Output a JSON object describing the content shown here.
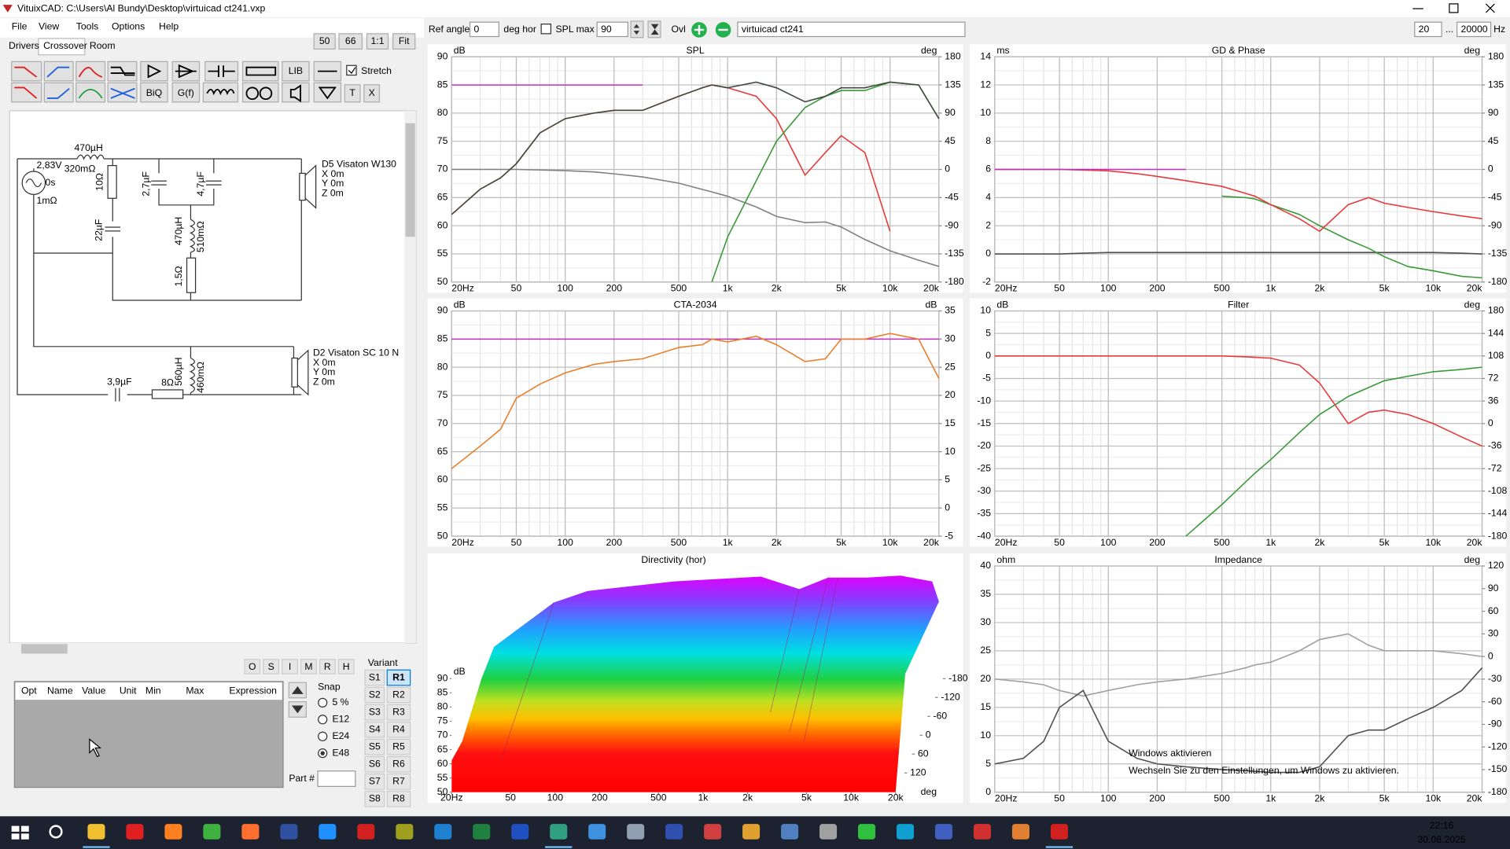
{
  "window": {
    "title": "VituixCAD: C:\\Users\\Al Bundy\\Desktop\\virtuicad ct241.vxp",
    "menu": [
      "File",
      "View",
      "Tools",
      "Options",
      "Help"
    ]
  },
  "tabs": [
    "Drivers",
    "Crossover",
    "Room"
  ],
  "zoom_buttons": [
    "50",
    "66",
    "1:1",
    "Fit"
  ],
  "toolbar": {
    "stretch": "Stretch",
    "lib": "LIB",
    "biq": "BiQ",
    "gf": "G(f)",
    "t": "T",
    "x": "X"
  },
  "schematic": {
    "labels": [
      "470µH",
      "320mΩ",
      "2,83V",
      "0s",
      "1mΩ",
      "10Ω",
      "2,7µF",
      "4,7µF",
      "22µF",
      "470µH",
      "510mΩ",
      "1,5Ω",
      "D5 Visaton W130",
      "X 0m",
      "Y 0m",
      "Z 0m",
      "D2 Visaton SC 10 N",
      "X 0m",
      "Y 0m",
      "Z 0m",
      "3,9µF",
      "8Ω",
      "560µH",
      "460mΩ"
    ]
  },
  "optimizer": {
    "flags": [
      "O",
      "S",
      "I",
      "M",
      "R",
      "H"
    ],
    "columns": [
      "Opt",
      "Name",
      "Value",
      "Unit",
      "Min",
      "Max",
      "Expression"
    ],
    "snap_title": "Snap",
    "snap_options": [
      "5 %",
      "E12",
      "E24",
      "E48"
    ],
    "part_label": "Part #",
    "variant_title": "Variant",
    "s": [
      "S1",
      "S2",
      "S3",
      "S4",
      "S5",
      "S6",
      "S7",
      "S8"
    ],
    "r": [
      "R1",
      "R2",
      "R3",
      "R4",
      "R5",
      "R6",
      "R7",
      "R8"
    ]
  },
  "top_bar": {
    "ref_angle_label": "Ref angle",
    "ref_angle": 0,
    "deg_hor": "deg hor",
    "spl_max_label": "SPL max",
    "spl_max": 90,
    "ovl": "Ovl",
    "project": "virtuicad ct241",
    "f_min": 20,
    "dots": "...",
    "f_max": 20000,
    "hz": "Hz"
  },
  "chart_data": [
    {
      "type": "line",
      "title": "SPL",
      "y_label": "dB",
      "y2_label": "deg",
      "xscale": "log",
      "grid": true,
      "minor_grid": true,
      "xlim": [
        20,
        20000
      ],
      "xticks": [
        {
          "value": 20,
          "label": "20Hz"
        },
        50,
        100,
        200,
        500,
        {
          "value": 1000,
          "label": "1k"
        },
        {
          "value": 2000,
          "label": "2k"
        },
        {
          "value": 5000,
          "label": "5k"
        },
        {
          "value": 10000,
          "label": "10k"
        },
        {
          "value": 20000,
          "label": "20k"
        }
      ],
      "ylim": [
        50,
        90
      ],
      "yticks": [
        50,
        55,
        60,
        65,
        70,
        75,
        80,
        85,
        90
      ],
      "y2lim": [
        -180,
        180
      ],
      "y2ticks": [
        -180,
        -135,
        -90,
        -45,
        0,
        45,
        90,
        135,
        180
      ],
      "x": [
        20,
        30,
        40,
        50,
        70,
        100,
        150,
        200,
        300,
        500,
        700,
        800,
        1000,
        1500,
        2000,
        3000,
        4000,
        5000,
        7000,
        10000,
        15000,
        20000
      ],
      "series": [
        {
          "color": "#808080",
          "axis": "y2",
          "values": [
            0,
            0,
            0,
            0,
            -1,
            -2,
            -4,
            -7,
            -12,
            -22,
            -32,
            -36,
            -43,
            -60,
            -75,
            -85,
            -84,
            -92,
            -112,
            -130,
            -145,
            -155
          ]
        },
        {
          "color": "#e83a3a",
          "values": [
            62,
            66.5,
            68.5,
            71,
            76.5,
            79,
            80,
            80.5,
            80.5,
            83,
            84.5,
            85,
            84.5,
            83,
            79,
            69,
            73,
            76,
            73,
            59,
            null,
            null
          ]
        },
        {
          "color": "#3a9a3a",
          "values": [
            null,
            null,
            null,
            null,
            null,
            null,
            null,
            null,
            null,
            null,
            null,
            50,
            58,
            68,
            75,
            81,
            83,
            84,
            84,
            85.5,
            85,
            79
          ]
        },
        {
          "color": "#404a40",
          "values": [
            62,
            66.5,
            68.5,
            71,
            76.5,
            79,
            80,
            80.5,
            80.5,
            83,
            84.5,
            85,
            84.5,
            85.5,
            84.5,
            82,
            83,
            84.5,
            84.5,
            85.5,
            85,
            79
          ]
        },
        {
          "color": "#c030c0",
          "values": [
            85,
            85,
            85,
            85,
            85,
            85,
            85,
            85,
            85,
            null,
            null,
            null,
            null,
            null,
            null,
            null,
            null,
            null,
            null,
            null,
            null,
            null
          ]
        }
      ]
    },
    {
      "type": "line",
      "title": "CTA-2034",
      "y_label": "dB",
      "y2_label": "dB",
      "xscale": "log",
      "grid": true,
      "minor_grid": true,
      "xlim": [
        20,
        20000
      ],
      "xticks": [
        {
          "value": 20,
          "label": "20Hz"
        },
        50,
        100,
        200,
        500,
        {
          "value": 1000,
          "label": "1k"
        },
        {
          "value": 2000,
          "label": "2k"
        },
        {
          "value": 5000,
          "label": "5k"
        },
        {
          "value": 10000,
          "label": "10k"
        },
        {
          "value": 20000,
          "label": "20k"
        }
      ],
      "ylim": [
        50,
        90
      ],
      "yticks": [
        50,
        55,
        60,
        65,
        70,
        75,
        80,
        85,
        90
      ],
      "y2lim": [
        -5,
        35
      ],
      "y2ticks": [
        -5,
        0,
        5,
        10,
        15,
        20,
        25,
        30,
        35
      ],
      "x": [
        20,
        30,
        40,
        50,
        70,
        100,
        150,
        200,
        300,
        500,
        700,
        800,
        1000,
        1500,
        2000,
        3000,
        4000,
        5000,
        7000,
        10000,
        15000,
        20000
      ],
      "series": [
        {
          "color": "#c030c0",
          "values": [
            85,
            85,
            85,
            85,
            85,
            85,
            85,
            85,
            85,
            85,
            85,
            85,
            85,
            85,
            85,
            85,
            85,
            85,
            85,
            85,
            85,
            85
          ]
        },
        {
          "color": "#e8802a",
          "values": [
            62,
            66,
            69,
            74.5,
            77,
            79,
            80.5,
            81,
            81.5,
            83.5,
            84,
            85,
            84.5,
            85.5,
            84,
            81,
            81.5,
            85,
            85,
            86,
            85,
            78
          ]
        }
      ]
    },
    {
      "type": "line",
      "title": "GD & Phase",
      "y_label": "ms",
      "y2_label": "deg",
      "xscale": "log",
      "grid": true,
      "minor_grid": true,
      "xlim": [
        20,
        20000
      ],
      "xticks": [
        {
          "value": 20,
          "label": "20Hz"
        },
        50,
        100,
        200,
        500,
        {
          "value": 1000,
          "label": "1k"
        },
        {
          "value": 2000,
          "label": "2k"
        },
        {
          "value": 5000,
          "label": "5k"
        },
        {
          "value": 10000,
          "label": "10k"
        },
        {
          "value": 20000,
          "label": "20k"
        }
      ],
      "ylim": [
        -2,
        14
      ],
      "yticks": [
        -2,
        0,
        2,
        4,
        6,
        8,
        10,
        12,
        14
      ],
      "y2lim": [
        -180,
        180
      ],
      "y2ticks": [
        -180,
        -135,
        -90,
        -45,
        0,
        45,
        90,
        135,
        180
      ],
      "x": [
        20,
        30,
        40,
        50,
        70,
        100,
        150,
        200,
        300,
        500,
        700,
        800,
        1000,
        1500,
        2000,
        3000,
        4000,
        5000,
        7000,
        10000,
        15000,
        20000
      ],
      "series": [
        {
          "color": "#505050",
          "values": [
            0,
            0,
            0,
            0,
            0.05,
            0.1,
            0.1,
            0.1,
            0.1,
            0.1,
            0.1,
            0.1,
            0.1,
            0.1,
            0.1,
            0.1,
            0.1,
            0.1,
            0.1,
            0.1,
            0.05,
            0
          ]
        },
        {
          "color": "#3a9a3a",
          "values": [
            null,
            null,
            null,
            null,
            null,
            null,
            null,
            null,
            null,
            4.1,
            4,
            3.9,
            3.5,
            2.8,
            2,
            1,
            0.4,
            -0.2,
            -0.9,
            -1.2,
            -1.6,
            -1.7
          ]
        },
        {
          "color": "#e83a3a",
          "values": [
            6,
            6,
            6,
            6,
            5.95,
            5.9,
            5.7,
            5.5,
            5.2,
            4.8,
            4.3,
            4.1,
            3.5,
            2.5,
            1.6,
            3.5,
            4,
            3.6,
            3.3,
            3,
            2.7,
            2.5
          ]
        },
        {
          "color": "#c030c0",
          "values": [
            6,
            6,
            6,
            6,
            6,
            6,
            6,
            6,
            6,
            null,
            null,
            null,
            null,
            null,
            null,
            null,
            null,
            null,
            null,
            null,
            null,
            null
          ]
        }
      ]
    },
    {
      "type": "line",
      "title": "Filter",
      "y_label": "dB",
      "y2_label": "deg",
      "xscale": "log",
      "grid": true,
      "minor_grid": true,
      "xlim": [
        20,
        20000
      ],
      "xticks": [
        {
          "value": 20,
          "label": "20Hz"
        },
        50,
        100,
        200,
        500,
        {
          "value": 1000,
          "label": "1k"
        },
        {
          "value": 2000,
          "label": "2k"
        },
        {
          "value": 5000,
          "label": "5k"
        },
        {
          "value": 10000,
          "label": "10k"
        },
        {
          "value": 20000,
          "label": "20k"
        }
      ],
      "ylim": [
        -40,
        10
      ],
      "yticks": [
        -40,
        -35,
        -30,
        -25,
        -20,
        -15,
        -10,
        -5,
        0,
        5,
        10
      ],
      "y2lim": [
        -180,
        180
      ],
      "y2ticks": [
        -180,
        -144,
        -108,
        -72,
        -36,
        0,
        36,
        72,
        108,
        144,
        180
      ],
      "x": [
        20,
        30,
        40,
        50,
        70,
        100,
        150,
        200,
        300,
        500,
        700,
        800,
        1000,
        1500,
        2000,
        3000,
        4000,
        5000,
        7000,
        10000,
        15000,
        20000
      ],
      "series": [
        {
          "color": "#3a9a3a",
          "values": [
            null,
            null,
            null,
            null,
            null,
            null,
            null,
            null,
            -40,
            -33,
            -28,
            -26,
            -23,
            -17,
            -13,
            -9,
            -7,
            -5.5,
            -4.5,
            -3.5,
            -3,
            -2.5
          ]
        },
        {
          "color": "#e83a3a",
          "values": [
            0,
            0,
            0,
            0,
            0,
            0,
            0,
            0,
            0,
            0,
            -0.2,
            -0.3,
            -0.5,
            -2,
            -6,
            -15,
            -12.5,
            -12,
            -13,
            -15,
            -18,
            -20
          ]
        }
      ]
    },
    {
      "type": "line",
      "title": "Impedance",
      "y_label": "ohm",
      "y2_label": "deg",
      "xscale": "log",
      "grid": true,
      "minor_grid": true,
      "xlim": [
        20,
        20000
      ],
      "xticks": [
        {
          "value": 20,
          "label": "20Hz"
        },
        50,
        100,
        200,
        500,
        {
          "value": 1000,
          "label": "1k"
        },
        {
          "value": 2000,
          "label": "2k"
        },
        {
          "value": 5000,
          "label": "5k"
        },
        {
          "value": 10000,
          "label": "10k"
        },
        {
          "value": 20000,
          "label": "20k"
        }
      ],
      "ylim": [
        0,
        40
      ],
      "yticks": [
        0,
        5,
        10,
        15,
        20,
        25,
        30,
        35,
        40
      ],
      "y2lim": [
        -180,
        120
      ],
      "y2ticks": [
        -180,
        -150,
        -120,
        -90,
        -60,
        -30,
        0,
        30,
        60,
        90,
        120
      ],
      "x": [
        20,
        30,
        40,
        50,
        70,
        100,
        150,
        200,
        300,
        500,
        700,
        800,
        1000,
        1500,
        2000,
        3000,
        4000,
        5000,
        7000,
        10000,
        15000,
        20000
      ],
      "series": [
        {
          "color": "#a0a0a0",
          "values": [
            20,
            19.5,
            19,
            18,
            17,
            18,
            19,
            19.5,
            20,
            21,
            22,
            22.5,
            23,
            25,
            27,
            28,
            26,
            25,
            25,
            25,
            24.5,
            24
          ]
        },
        {
          "color": "#505050",
          "values": [
            5,
            6,
            9,
            15,
            18,
            9,
            6,
            5,
            4.5,
            4,
            3.8,
            3.7,
            3.5,
            3.5,
            4.5,
            10,
            11,
            11,
            13,
            15,
            18,
            22
          ]
        }
      ]
    },
    {
      "type": "waterfall",
      "title": "Directivity (hor)",
      "y_label": "dB",
      "z_label": "deg",
      "xscale": "log",
      "xlim": [
        20,
        20000
      ],
      "xticks": [
        {
          "value": 20,
          "label": "20Hz"
        },
        50,
        100,
        200,
        500,
        {
          "value": 1000,
          "label": "1k"
        },
        {
          "value": 2000,
          "label": "2k"
        },
        {
          "value": 5000,
          "label": "5k"
        },
        {
          "value": 10000,
          "label": "10k"
        },
        {
          "value": 20000,
          "label": "20k"
        }
      ],
      "ylim": [
        50,
        90
      ],
      "yticks": [
        50,
        55,
        60,
        65,
        70,
        75,
        80,
        85,
        90
      ],
      "zlim": [
        -180,
        120
      ],
      "zticks": [
        -180,
        -120,
        -60,
        0,
        60,
        120
      ]
    }
  ],
  "watermark": {
    "title": "Windows aktivieren",
    "text": "Wechseln Sie zu den Einstellungen, um Windows zu aktivieren."
  },
  "taskbar": {
    "time": "22:16",
    "date": "30.08.2025"
  }
}
